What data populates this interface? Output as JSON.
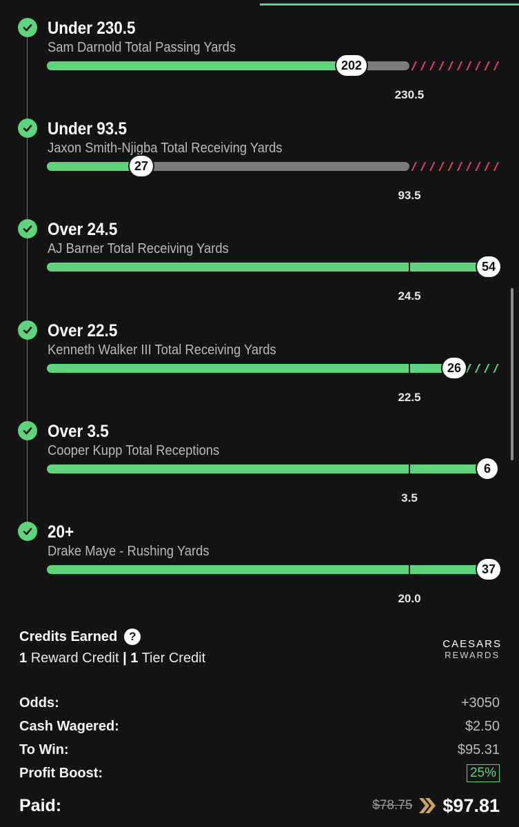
{
  "legs": [
    {
      "title": "Under 230.5",
      "subtitle": "Sam Darnold Total Passing Yards",
      "result": "202",
      "line": "230.5"
    },
    {
      "title": "Under 93.5",
      "subtitle": "Jaxon Smith-Njigba Total Receiving Yards",
      "result": "27",
      "line": "93.5"
    },
    {
      "title": "Over 24.5",
      "subtitle": "AJ Barner Total Receiving Yards",
      "result": "54",
      "line": "24.5"
    },
    {
      "title": "Over 22.5",
      "subtitle": "Kenneth Walker III Total Receiving Yards",
      "result": "26",
      "line": "22.5"
    },
    {
      "title": "Over 3.5",
      "subtitle": "Cooper Kupp Total Receptions",
      "result": "6",
      "line": "3.5"
    },
    {
      "title": "20+",
      "subtitle": "Drake Maye - Rushing Yards",
      "result": "37",
      "line": "20.0"
    }
  ],
  "credits": {
    "title": "Credits Earned",
    "help_glyph": "?",
    "reward_count": "1",
    "reward_label": "Reward Credit",
    "separator": "|",
    "tier_count": "1",
    "tier_label": "Tier Credit",
    "brand_line1": "CAESARS",
    "brand_line2": "REWARDS"
  },
  "summary": {
    "odds_label": "Odds:",
    "odds": "+3050",
    "wager_label": "Cash Wagered:",
    "wager": "$2.50",
    "towin_label": "To Win:",
    "towin": "$95.31",
    "boost_label": "Profit Boost:",
    "boost": "25%",
    "paid_label": "Paid:",
    "paid_old": "$78.75",
    "paid_new": "$97.81"
  },
  "colors": {
    "accent": "#5ed47c",
    "loss_hatch": "#e0425a",
    "bar_gray": "#7b7b7b",
    "boost_arrow": "#c8a45c"
  }
}
